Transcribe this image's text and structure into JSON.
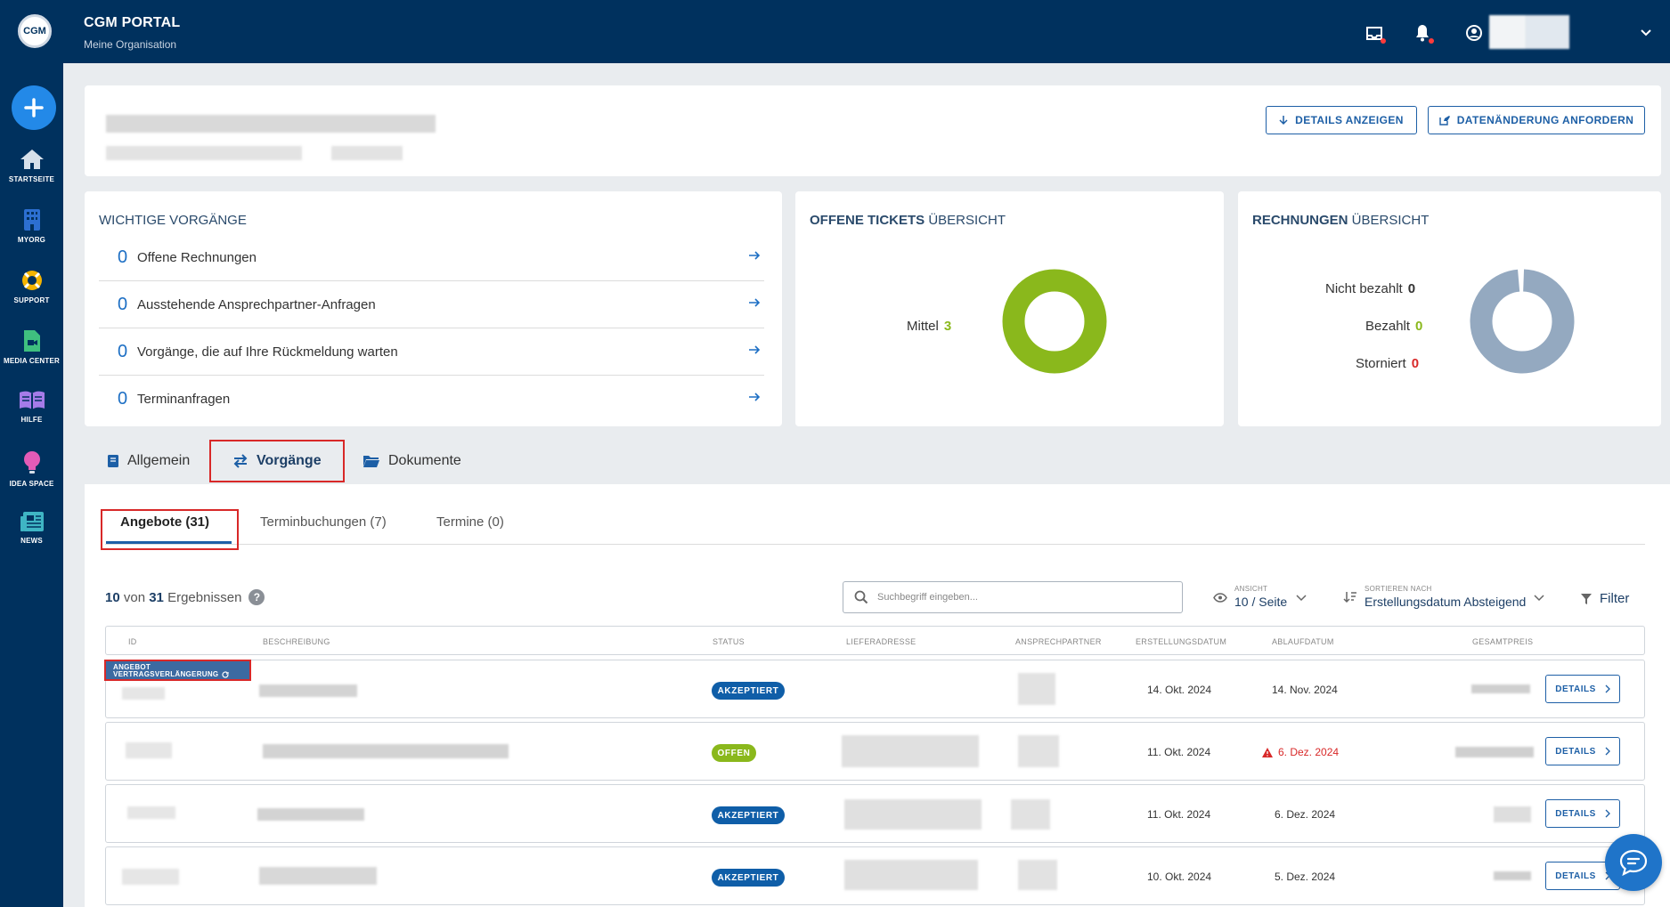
{
  "app": {
    "logo_text": "CGM",
    "title": "CGM PORTAL",
    "subtitle": "Meine Organisation"
  },
  "sidebar": {
    "items": [
      {
        "label": "STARTSEITE",
        "icon": "home-icon"
      },
      {
        "label": "MYORG",
        "icon": "building-icon"
      },
      {
        "label": "SUPPORT",
        "icon": "lifebuoy-icon"
      },
      {
        "label": "MEDIA CENTER",
        "icon": "media-file-icon"
      },
      {
        "label": "HILFE",
        "icon": "book-icon"
      },
      {
        "label": "IDEA SPACE",
        "icon": "lightbulb-icon"
      },
      {
        "label": "NEWS",
        "icon": "newspaper-icon"
      }
    ]
  },
  "header": {
    "details_label": "DETAILS ANZEIGEN",
    "change_label": "DATENÄNDERUNG ANFORDERN"
  },
  "vorgaenge": {
    "title": "WICHTIGE VORGÄNGE",
    "items": [
      {
        "count": "0",
        "label": "Offene Rechnungen"
      },
      {
        "count": "0",
        "label": "Ausstehende Ansprechpartner-Anfragen"
      },
      {
        "count": "0",
        "label": "Vorgänge, die auf Ihre Rückmeldung warten"
      },
      {
        "count": "0",
        "label": "Terminanfragen"
      }
    ]
  },
  "tickets": {
    "title_bold": "OFFENE TICKETS",
    "title_rest": " ÜBERSICHT",
    "legend": [
      {
        "label": "Mittel",
        "value": "3",
        "color": "#8ab81c"
      }
    ]
  },
  "rechnungen": {
    "title_bold": "RECHNUNGEN",
    "title_rest": " ÜBERSICHT",
    "legend": [
      {
        "label": "Nicht bezahlt",
        "value": "0",
        "color": "#333333"
      },
      {
        "label": "Bezahlt",
        "value": "0",
        "color": "#8ab81c"
      },
      {
        "label": "Storniert",
        "value": "0",
        "color": "#d82828"
      }
    ]
  },
  "main_tabs": [
    {
      "label": "Allgemein",
      "icon": "book-icon"
    },
    {
      "label": "Vorgänge",
      "icon": "transfer-icon"
    },
    {
      "label": "Dokumente",
      "icon": "folder-icon"
    }
  ],
  "sub_tabs": [
    {
      "label": "Angebote (31)"
    },
    {
      "label": "Terminbuchungen (7)"
    },
    {
      "label": "Termine (0)"
    }
  ],
  "results": {
    "shown": "10",
    "word_of": "von",
    "total": "31",
    "suffix": "Ergebnissen",
    "help": "?"
  },
  "search": {
    "placeholder": "Suchbegriff eingeben..."
  },
  "view": {
    "caption": "ANSICHT",
    "value": "10 / Seite"
  },
  "sort": {
    "caption": "SORTIEREN NACH",
    "value": "Erstellungsdatum Absteigend"
  },
  "filter_label": "Filter",
  "table": {
    "headers": [
      "ID",
      "BESCHREIBUNG",
      "STATUS",
      "LIEFERADRESSE",
      "ANSPRECHPARTNER",
      "ERSTELLUNGSDATUM",
      "ABLAUFDATUM",
      "GESAMTPREIS"
    ],
    "row_tag_line1": "ANGEBOT",
    "row_tag_line2": "VERTRAGSVERLÄNGERUNG",
    "details_label": "DETAILS",
    "rows": [
      {
        "status": "AKZEPTIERT",
        "created": "14. Okt. 2024",
        "expires": "14. Nov. 2024"
      },
      {
        "status": "OFFEN",
        "created": "11. Okt. 2024",
        "expires": "6. Dez. 2024"
      },
      {
        "status": "AKZEPTIERT",
        "created": "11. Okt. 2024",
        "expires": "6. Dez. 2024"
      },
      {
        "status": "AKZEPTIERT",
        "created": "10. Okt. 2024",
        "expires": "5. Dez. 2024"
      }
    ]
  },
  "colors": {
    "navy": "#00315e",
    "accent": "#1d5fa6",
    "green": "#8ab81c",
    "red": "#d82828",
    "grey_donut": "#94a9c0"
  }
}
